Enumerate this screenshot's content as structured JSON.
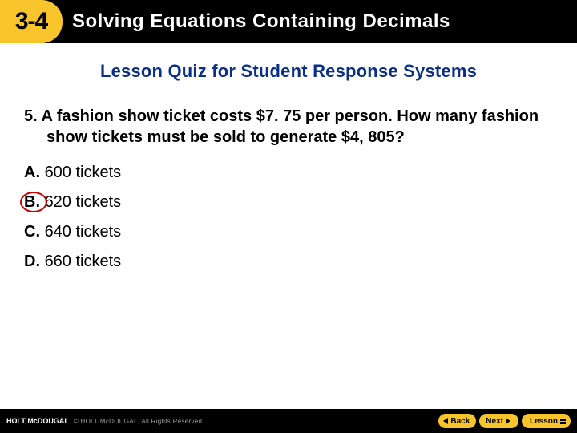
{
  "header": {
    "chapter": "3-4",
    "title": "Solving Equations Containing Decimals"
  },
  "subtitle": "Lesson Quiz for Student Response Systems",
  "question": {
    "number": "5.",
    "text": "A fashion show ticket costs $7. 75 per person. How many fashion show tickets must be sold to generate $4, 805?"
  },
  "answers": [
    {
      "letter": "A.",
      "text": "600 tickets",
      "circled": false
    },
    {
      "letter": "B.",
      "text": "620 tickets",
      "circled": true
    },
    {
      "letter": "C.",
      "text": "640 tickets",
      "circled": false
    },
    {
      "letter": "D.",
      "text": "660 tickets",
      "circled": false
    }
  ],
  "footer": {
    "logo_holt": "HOLT",
    "logo_rest": " McDOUGAL",
    "copyright": "© HOLT McDOUGAL, All Rights Reserved",
    "back": "Back",
    "next": "Next",
    "lesson": "Lesson"
  },
  "colors": {
    "accent": "#f7c52b",
    "subtitle": "#0a2f8a",
    "circle": "#cc0000"
  }
}
